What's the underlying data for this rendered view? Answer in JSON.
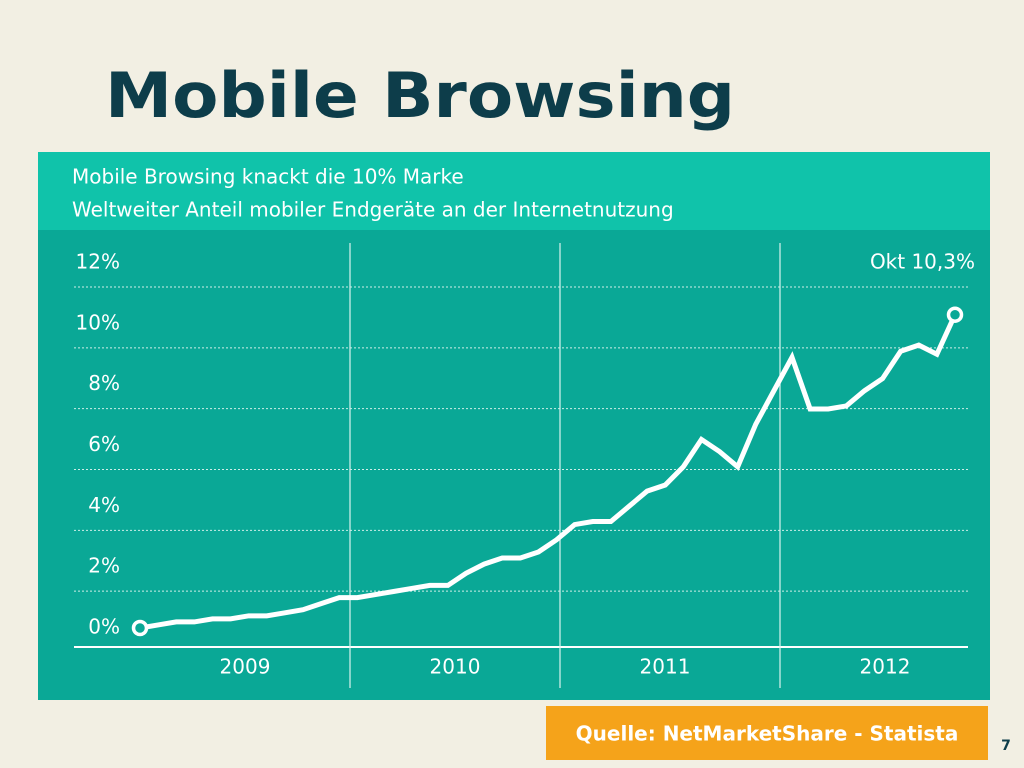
{
  "title": "Mobile Browsing",
  "chart_data": {
    "type": "line",
    "title": "Mobile Browsing knackt die 10% Marke",
    "subtitle": "Weltweiter Anteil mobiler Endgeräte an der Internetnutzung",
    "years": [
      "2009",
      "2010",
      "2011",
      "2012"
    ],
    "series": [
      {
        "color": "#ffffff",
        "values": [
          0.0,
          0.1,
          0.2,
          0.2,
          0.3,
          0.3,
          0.4,
          0.4,
          0.5,
          0.6,
          0.8,
          1.0,
          1.0,
          1.1,
          1.2,
          1.3,
          1.4,
          1.4,
          1.8,
          2.1,
          2.3,
          2.3,
          2.5,
          2.9,
          3.4,
          3.5,
          3.5,
          4.0,
          4.5,
          4.7,
          5.3,
          6.2,
          5.8,
          5.3,
          6.7,
          7.8,
          8.9,
          7.2,
          7.2,
          7.3,
          7.8,
          8.2,
          9.1,
          9.3,
          9.0,
          10.3
        ]
      }
    ],
    "ylim": [
      0,
      12
    ],
    "yticks": [
      {
        "value": 0,
        "label": "0%"
      },
      {
        "value": 2,
        "label": "2%"
      },
      {
        "value": 4,
        "label": "4%"
      },
      {
        "value": 6,
        "label": "6%"
      },
      {
        "value": 8,
        "label": "8%"
      },
      {
        "value": 10,
        "label": "10%"
      },
      {
        "value": 12,
        "label": "12%"
      }
    ],
    "grid": true,
    "annotation": "Okt 10,3%"
  },
  "source": "Quelle: NetMarketShare - Statista",
  "page_number": "7"
}
